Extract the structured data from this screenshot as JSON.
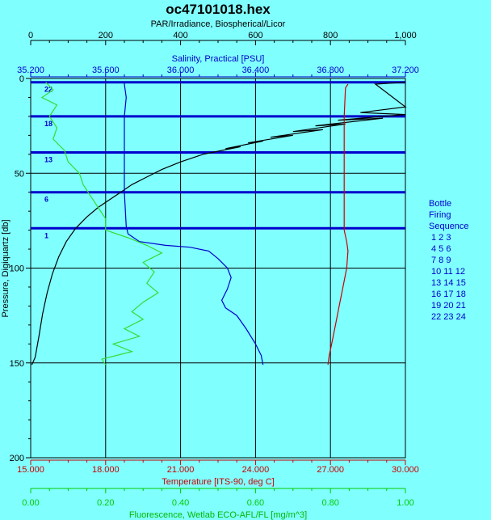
{
  "chart_data": {
    "type": "line",
    "title": "oc47101018.hex",
    "y_axis": {
      "label": "Pressure, Digiquartz [db]",
      "range": [
        0,
        200
      ],
      "ticks": [
        "0",
        "50",
        "100",
        "150",
        "200"
      ],
      "inverted": true
    },
    "top_axes": [
      {
        "label": "PAR/Irradiance, Biospherical/Licor",
        "range": [
          0,
          1000
        ],
        "ticks": [
          "0",
          "200",
          "400",
          "600",
          "800",
          "1,000"
        ],
        "color": "#000000"
      },
      {
        "label": "Salinity, Practical [PSU]",
        "range": [
          35.2,
          37.2
        ],
        "ticks": [
          "35.200",
          "35.600",
          "36.000",
          "36.400",
          "36.800",
          "37.200"
        ],
        "color": "#0000cc"
      }
    ],
    "bottom_axes": [
      {
        "label": "Temperature [ITS-90, deg C]",
        "range": [
          15,
          30
        ],
        "ticks": [
          "15.000",
          "18.000",
          "21.000",
          "24.000",
          "27.000",
          "30.000"
        ],
        "color": "#cc0000"
      },
      {
        "label": "Fluorescence, Wetlab ECO-AFL/FL [mg/m^3]",
        "range": [
          0,
          1
        ],
        "ticks": [
          "0.00",
          "0.20",
          "0.40",
          "0.60",
          "0.80",
          "1.00"
        ],
        "color": "#00cc00"
      }
    ],
    "grid": true,
    "series": [
      {
        "name": "PAR/Irradiance",
        "axis": "top0",
        "color": "#000000",
        "points": [
          [
            1000,
            2
          ],
          [
            920,
            3
          ],
          [
            1000,
            15
          ],
          [
            880,
            18
          ],
          [
            1000,
            19
          ],
          [
            820,
            22
          ],
          [
            940,
            21
          ],
          [
            760,
            25
          ],
          [
            840,
            24
          ],
          [
            700,
            28
          ],
          [
            780,
            27
          ],
          [
            640,
            31
          ],
          [
            700,
            30
          ],
          [
            580,
            34
          ],
          [
            620,
            33
          ],
          [
            520,
            37
          ],
          [
            560,
            36
          ],
          [
            460,
            40
          ],
          [
            400,
            44
          ],
          [
            350,
            48
          ],
          [
            310,
            52
          ],
          [
            270,
            56
          ],
          [
            240,
            60
          ],
          [
            210,
            64
          ],
          [
            180,
            68
          ],
          [
            150,
            73
          ],
          [
            120,
            79
          ],
          [
            95,
            86
          ],
          [
            75,
            94
          ],
          [
            58,
            103
          ],
          [
            44,
            113
          ],
          [
            32,
            124
          ],
          [
            22,
            136
          ],
          [
            12,
            147
          ],
          [
            3,
            151
          ]
        ]
      },
      {
        "name": "Salinity",
        "axis": "top1",
        "color": "#0000cc",
        "points": [
          [
            35.7,
            2
          ],
          [
            35.7,
            3
          ],
          [
            35.71,
            10
          ],
          [
            35.7,
            20
          ],
          [
            35.7,
            40
          ],
          [
            35.7,
            60
          ],
          [
            35.71,
            78
          ],
          [
            35.72,
            82
          ],
          [
            35.78,
            86
          ],
          [
            35.92,
            88
          ],
          [
            36.05,
            89
          ],
          [
            36.15,
            91
          ],
          [
            36.2,
            95
          ],
          [
            36.25,
            100
          ],
          [
            36.27,
            105
          ],
          [
            36.25,
            111
          ],
          [
            36.22,
            117
          ],
          [
            36.24,
            121
          ],
          [
            36.3,
            125
          ],
          [
            36.35,
            132
          ],
          [
            36.4,
            140
          ],
          [
            36.43,
            146
          ],
          [
            36.44,
            151
          ]
        ]
      },
      {
        "name": "Temperature",
        "axis": "bottom0",
        "color": "#cc0000",
        "points": [
          [
            27.7,
            3
          ],
          [
            27.6,
            5
          ],
          [
            27.55,
            20
          ],
          [
            27.55,
            40
          ],
          [
            27.55,
            60
          ],
          [
            27.55,
            80
          ],
          [
            27.65,
            86
          ],
          [
            27.7,
            91
          ],
          [
            27.65,
            100
          ],
          [
            27.5,
            110
          ],
          [
            27.35,
            120
          ],
          [
            27.2,
            130
          ],
          [
            27.05,
            140
          ],
          [
            26.95,
            146
          ],
          [
            26.9,
            151
          ]
        ]
      },
      {
        "name": "Fluorescence",
        "axis": "bottom1",
        "color": "#33dd33",
        "points": [
          [
            0.04,
            2
          ],
          [
            0.06,
            6
          ],
          [
            0.03,
            10
          ],
          [
            0.07,
            14
          ],
          [
            0.05,
            20
          ],
          [
            0.07,
            26
          ],
          [
            0.06,
            32
          ],
          [
            0.09,
            38
          ],
          [
            0.1,
            44
          ],
          [
            0.13,
            50
          ],
          [
            0.14,
            56
          ],
          [
            0.16,
            62
          ],
          [
            0.18,
            68
          ],
          [
            0.2,
            74
          ],
          [
            0.2,
            80
          ],
          [
            0.26,
            84
          ],
          [
            0.31,
            88
          ],
          [
            0.35,
            92
          ],
          [
            0.3,
            97
          ],
          [
            0.33,
            102
          ],
          [
            0.31,
            108
          ],
          [
            0.34,
            113
          ],
          [
            0.3,
            118
          ],
          [
            0.27,
            123
          ],
          [
            0.3,
            127
          ],
          [
            0.25,
            132
          ],
          [
            0.29,
            136
          ],
          [
            0.22,
            140
          ],
          [
            0.27,
            144
          ],
          [
            0.19,
            148
          ],
          [
            0.2,
            151
          ]
        ]
      }
    ],
    "bottle_lines": {
      "pressures": [
        2,
        20,
        39,
        60,
        79
      ],
      "labels": [
        "22",
        "18",
        "13",
        "6",
        "1"
      ],
      "color": "#0000cc"
    },
    "legend": {
      "title_lines": [
        "Bottle",
        "Firing",
        "Sequence"
      ],
      "rows": [
        "1  2  3",
        "4  5  6",
        "7  8  9",
        "10 11 12",
        "13 14 15",
        "16 17 18",
        "19 20 21",
        "22 23 24"
      ],
      "position": "right"
    }
  }
}
